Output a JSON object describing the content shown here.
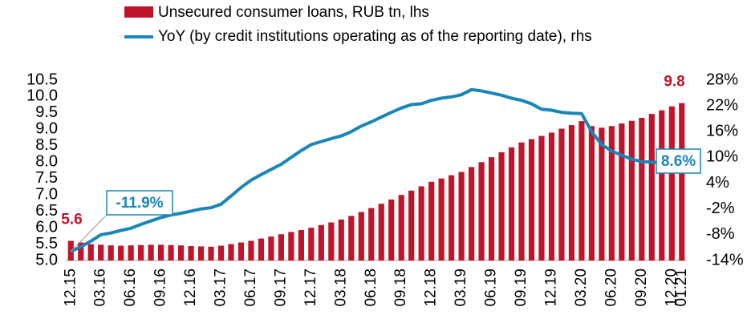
{
  "chart_data": {
    "type": "bar_line",
    "categories": [
      "12.15",
      null,
      null,
      "03.16",
      null,
      null,
      "06.16",
      null,
      null,
      "09.16",
      null,
      null,
      "12.16",
      null,
      null,
      "03.17",
      null,
      null,
      "06.17",
      null,
      null,
      "09.17",
      null,
      null,
      "12.17",
      null,
      null,
      "03.18",
      null,
      null,
      "06.18",
      null,
      null,
      "09.18",
      null,
      null,
      "12.18",
      null,
      null,
      "03.19",
      null,
      null,
      "06.19",
      null,
      null,
      "09.19",
      null,
      null,
      "12.19",
      null,
      null,
      "03.20",
      null,
      null,
      "06.20",
      null,
      null,
      "09.20",
      null,
      null,
      "12.20",
      "01.21"
    ],
    "series": [
      {
        "name": "Unsecured consumer loans, RUB tn, lhs",
        "color": "#c0142a",
        "axis": "y",
        "values": [
          5.6,
          5.55,
          5.5,
          5.48,
          5.46,
          5.45,
          5.46,
          5.47,
          5.48,
          5.48,
          5.47,
          5.46,
          5.44,
          5.43,
          5.42,
          5.45,
          5.5,
          5.55,
          5.6,
          5.67,
          5.73,
          5.8,
          5.87,
          5.93,
          6.0,
          6.08,
          6.16,
          6.25,
          6.36,
          6.48,
          6.6,
          6.73,
          6.86,
          7.0,
          7.13,
          7.26,
          7.4,
          7.5,
          7.6,
          7.7,
          7.85,
          8.0,
          8.15,
          8.3,
          8.45,
          8.6,
          8.7,
          8.8,
          8.9,
          9.02,
          9.13,
          9.25,
          9.1,
          9.05,
          9.1,
          9.18,
          9.26,
          9.35,
          9.47,
          9.58,
          9.7,
          9.8
        ],
        "value_labels": [
          "5.6",
          null,
          null,
          null,
          null,
          null,
          null,
          null,
          null,
          null,
          null,
          null,
          null,
          null,
          null,
          null,
          null,
          null,
          null,
          null,
          null,
          null,
          null,
          null,
          null,
          null,
          null,
          null,
          null,
          null,
          null,
          null,
          null,
          null,
          null,
          null,
          null,
          null,
          null,
          null,
          null,
          null,
          null,
          null,
          null,
          null,
          null,
          null,
          null,
          null,
          null,
          null,
          null,
          null,
          null,
          null,
          null,
          null,
          null,
          null,
          null,
          "9.8"
        ]
      },
      {
        "name": "YoY (by credit institutions operating as of the reporting date), rhs",
        "color": "#1a85b8",
        "axis": "y2",
        "values": [
          -11.9,
          -10.8,
          -9.5,
          -8.0,
          -7.6,
          -7.0,
          -6.5,
          -5.6,
          -4.8,
          -4.0,
          -3.4,
          -3.0,
          -2.5,
          -2.0,
          -1.7,
          -0.9,
          1.0,
          3.0,
          4.7,
          6.0,
          7.2,
          8.4,
          10.0,
          11.6,
          13.0,
          13.7,
          14.4,
          15.0,
          16.0,
          17.3,
          18.3,
          19.4,
          20.5,
          21.5,
          22.3,
          22.5,
          23.3,
          23.8,
          24.1,
          24.6,
          25.8,
          25.5,
          25.0,
          24.5,
          23.8,
          23.3,
          22.5,
          21.2,
          21.0,
          20.5,
          20.3,
          20.2,
          16.0,
          13.0,
          11.5,
          10.5,
          9.6,
          9.0,
          8.9,
          8.8,
          8.8,
          8.6
        ],
        "value_labels": [
          "-11.9%",
          null,
          null,
          null,
          null,
          null,
          null,
          null,
          null,
          null,
          null,
          null,
          null,
          null,
          null,
          null,
          null,
          null,
          null,
          null,
          null,
          null,
          null,
          null,
          null,
          null,
          null,
          null,
          null,
          null,
          null,
          null,
          null,
          null,
          null,
          null,
          null,
          null,
          null,
          null,
          null,
          null,
          null,
          null,
          null,
          null,
          null,
          null,
          null,
          null,
          null,
          null,
          null,
          null,
          null,
          null,
          null,
          null,
          null,
          null,
          null,
          "8.6%"
        ]
      }
    ],
    "ylim": [
      5.0,
      10.5
    ],
    "yticks": [
      {
        "value": 5.0,
        "label": "5.0"
      },
      5.5,
      {
        "value": 6.0,
        "label": "6.0"
      },
      6.5,
      {
        "value": 7.0,
        "label": "7.0"
      },
      7.5,
      {
        "value": 8.0,
        "label": "8.0"
      },
      8.5,
      {
        "value": 9.0,
        "label": "9.0"
      },
      9.5,
      {
        "value": 10.0,
        "label": "10.0"
      },
      10.5
    ],
    "y2lim": [
      -14,
      28
    ],
    "y2ticks": [
      {
        "value": -14,
        "label": "-14%"
      },
      {
        "value": -8,
        "label": "-8%"
      },
      {
        "value": -2,
        "label": "-2%"
      },
      {
        "value": 4,
        "label": "4%"
      },
      {
        "value": 10,
        "label": "10%"
      },
      {
        "value": 16,
        "label": "16%"
      },
      {
        "value": 22,
        "label": "22%"
      },
      {
        "value": 28,
        "label": "28%"
      }
    ],
    "grid": false
  }
}
